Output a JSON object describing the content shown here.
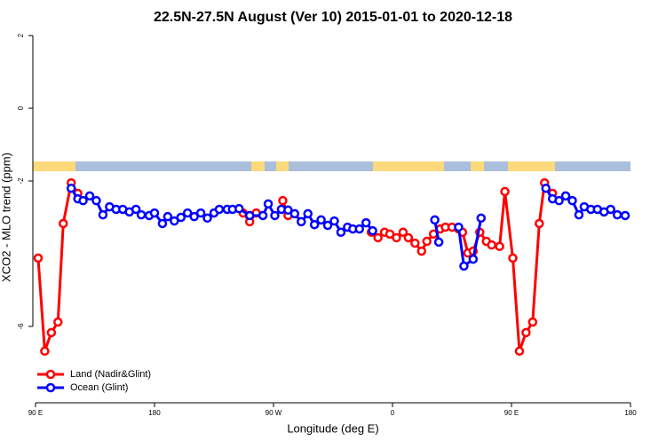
{
  "chart_data": {
    "type": "line",
    "title": "22.5N-27.5N August (Ver 10)   2015-01-01 to 2020-12-18",
    "x_label": "Longitude (deg E)",
    "y_label": "XCO2 - MLO trend (ppm)",
    "xlim": [
      88,
      542
    ],
    "xticks": [
      {
        "value": 90,
        "label": "90 E"
      },
      180,
      {
        "value": 270,
        "label": "90 W"
      },
      {
        "value": 360,
        "label": "0"
      },
      {
        "value": 450,
        "label": "90 E"
      },
      {
        "value": 540,
        "label": "180"
      }
    ],
    "ylim": [
      -8.1,
      2.1
    ],
    "yticks": [
      -6,
      -2,
      0,
      2
    ],
    "legend": "bottomleft",
    "series": [
      {
        "name": "Land (Nadir&Glint)",
        "color": "#ff0000",
        "x": [
          92,
          97,
          102,
          107,
          111,
          117,
          122,
          null,
          247,
          252,
          257,
          null,
          277,
          281,
          null,
          344,
          349,
          354,
          358,
          363,
          368,
          372,
          377,
          382,
          386,
          391,
          396,
          400,
          405,
          410,
          413,
          417,
          421,
          426,
          431,
          435,
          441,
          445,
          451,
          456,
          461,
          466,
          471,
          475,
          481
        ],
        "values": [
          -4.12,
          -6.68,
          -6.17,
          -5.88,
          -3.17,
          -2.05,
          -2.34,
          null,
          -2.88,
          -3.12,
          -2.88,
          null,
          -2.54,
          -2.95,
          null,
          -3.41,
          -3.56,
          -3.41,
          -3.46,
          -3.56,
          -3.41,
          -3.56,
          -3.71,
          -3.93,
          -3.66,
          -3.46,
          -3.32,
          -3.27,
          -3.27,
          -3.32,
          -3.41,
          -3.98,
          -3.93,
          -3.41,
          -3.66,
          -3.76,
          -3.8,
          -2.29,
          -4.12,
          -6.68,
          -6.17,
          -5.88,
          -3.17,
          -2.05,
          -2.34
        ]
      },
      {
        "name": "Ocean (Glint)",
        "color": "#0000ff",
        "x": [
          117,
          122,
          126,
          131,
          136,
          141,
          146,
          151,
          156,
          161,
          166,
          170,
          176,
          180,
          186,
          190,
          195,
          200,
          205,
          210,
          215,
          220,
          225,
          229,
          235,
          239,
          244,
          252,
          262,
          266,
          271,
          276,
          281,
          286,
          291,
          296,
          301,
          306,
          311,
          316,
          321,
          326,
          330,
          335,
          340,
          345,
          null,
          392,
          395,
          null,
          410,
          414,
          421,
          427,
          null,
          476,
          481,
          486,
          491,
          496,
          501,
          505,
          510,
          515,
          520,
          525,
          530,
          536
        ],
        "values": [
          -2.2,
          -2.49,
          -2.54,
          -2.41,
          -2.54,
          -2.93,
          -2.71,
          -2.78,
          -2.78,
          -2.85,
          -2.78,
          -2.93,
          -2.95,
          -2.88,
          -3.17,
          -2.98,
          -3.1,
          -3.0,
          -2.88,
          -2.98,
          -2.88,
          -3.02,
          -2.88,
          -2.78,
          -2.78,
          -2.78,
          -2.76,
          -2.95,
          -2.95,
          -2.63,
          -2.95,
          -2.78,
          -2.8,
          -2.9,
          -3.12,
          -2.9,
          -3.2,
          -3.07,
          -3.22,
          -3.1,
          -3.41,
          -3.27,
          -3.32,
          -3.32,
          -3.15,
          -3.37,
          null,
          -3.07,
          -3.68,
          null,
          -3.27,
          -4.34,
          -4.15,
          -3.02,
          null,
          -2.2,
          -2.49,
          -2.54,
          -2.41,
          -2.54,
          -2.93,
          -2.71,
          -2.78,
          -2.78,
          -2.85,
          -2.78,
          -2.93,
          -2.95
        ]
      }
    ]
  }
}
